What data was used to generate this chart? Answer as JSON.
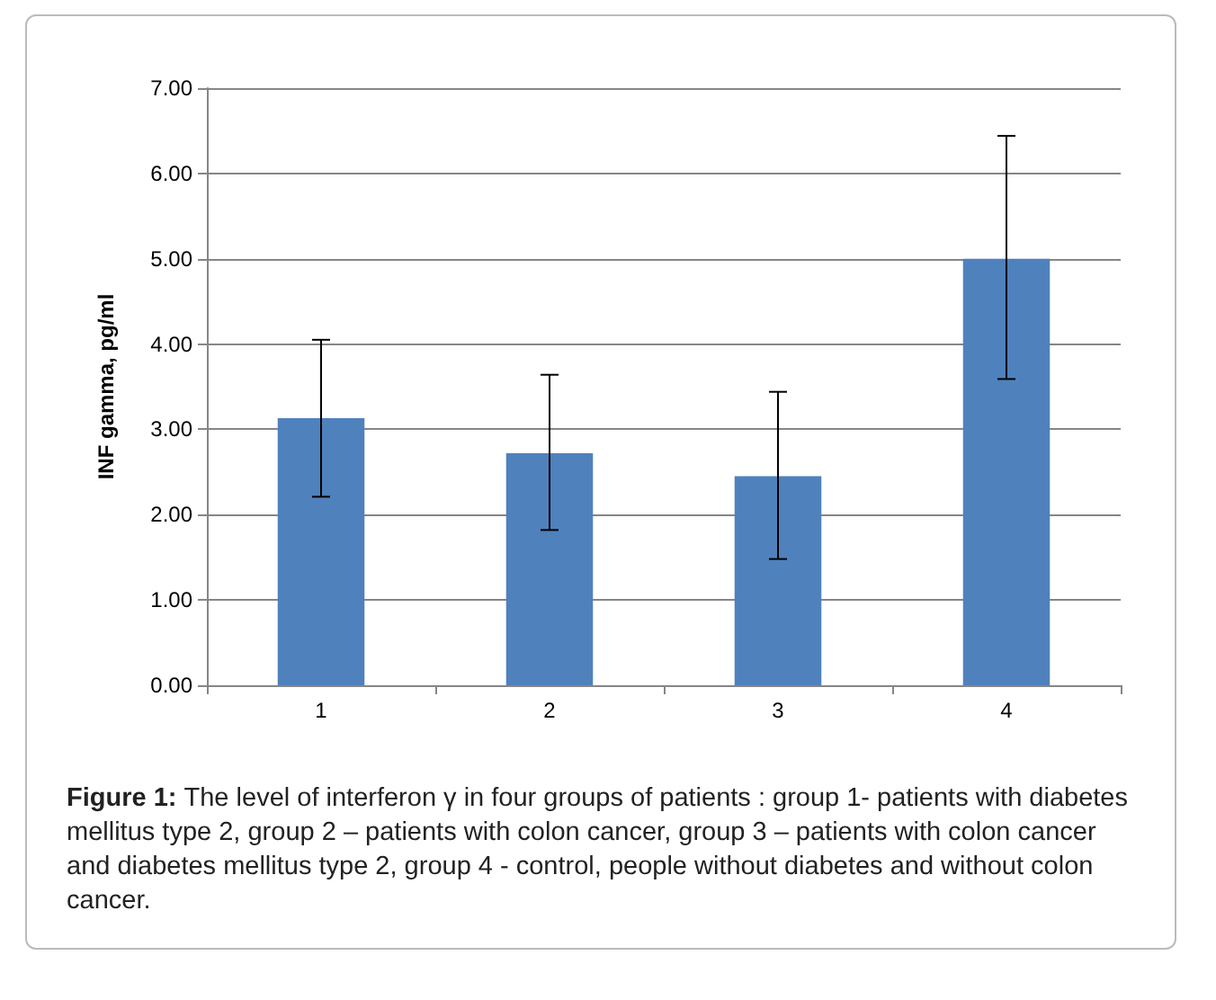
{
  "chart_data": {
    "type": "bar",
    "ylabel": "INF gamma, pg/ml",
    "categories": [
      "1",
      "2",
      "3",
      "4"
    ],
    "values": [
      3.13,
      2.72,
      2.45,
      5.0
    ],
    "color": "#4f81bd",
    "errors": [
      [
        2.21,
        4.05
      ],
      [
        1.82,
        3.64
      ],
      [
        1.48,
        3.44
      ],
      [
        3.59,
        6.44
      ]
    ],
    "ylim": [
      0,
      7
    ],
    "yticks": [
      {
        "value": 0,
        "label": "0.00"
      },
      {
        "value": 1,
        "label": "1.00"
      },
      {
        "value": 2,
        "label": "2.00"
      },
      {
        "value": 3,
        "label": "3.00"
      },
      {
        "value": 4,
        "label": "4.00"
      },
      {
        "value": 5,
        "label": "5.00"
      },
      {
        "value": 6,
        "label": "6.00"
      },
      {
        "value": 7,
        "label": "7.00"
      }
    ],
    "grid": "y",
    "annotations": [
      "Figure 1:",
      "The level of interferon γ in four groups of patients : group 1- patients with diabetes mellitus type 2, group 2 – patients with colon cancer, group 3 – patients with colon cancer and diabetes mellitus type 2, group 4 -  control, people without diabetes and without colon cancer."
    ]
  }
}
